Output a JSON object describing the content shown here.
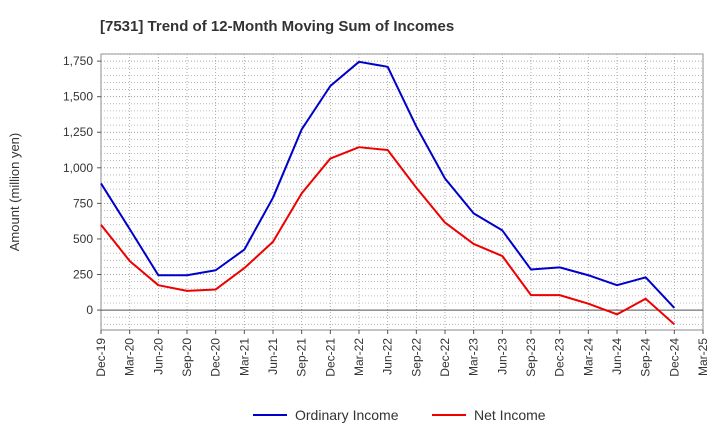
{
  "chart_data": {
    "type": "line",
    "title": "[7531]  Trend of 12-Month Moving Sum of Incomes",
    "xlabel": "",
    "ylabel": "Amount (million yen)",
    "ylim": [
      -140,
      1800
    ],
    "yticks": [
      0,
      250,
      500,
      750,
      "1,000",
      "1,250",
      "1,500",
      "1,750"
    ],
    "ytick_values": [
      0,
      250,
      500,
      750,
      1000,
      1250,
      1500,
      1750
    ],
    "categories": [
      "Dec-19",
      "Mar-20",
      "Jun-20",
      "Sep-20",
      "Dec-20",
      "Mar-21",
      "Jun-21",
      "Sep-21",
      "Dec-21",
      "Mar-22",
      "Jun-22",
      "Sep-22",
      "Dec-22",
      "Mar-23",
      "Jun-23",
      "Sep-23",
      "Dec-23",
      "Mar-24",
      "Jun-24",
      "Sep-24",
      "Dec-24",
      "Mar-25"
    ],
    "grid": true,
    "legend_position": "bottom",
    "series": [
      {
        "name": "Ordinary Income",
        "color": "#0000cc",
        "values": [
          890,
          570,
          245,
          245,
          280,
          425,
          790,
          1270,
          1575,
          1745,
          1710,
          1290,
          925,
          680,
          560,
          285,
          300,
          245,
          175,
          230,
          15,
          null
        ]
      },
      {
        "name": "Net Income",
        "color": "#ee0000",
        "values": [
          600,
          345,
          175,
          135,
          145,
          295,
          480,
          820,
          1065,
          1145,
          1125,
          860,
          615,
          465,
          380,
          105,
          105,
          45,
          -30,
          80,
          -100,
          null
        ]
      }
    ]
  }
}
